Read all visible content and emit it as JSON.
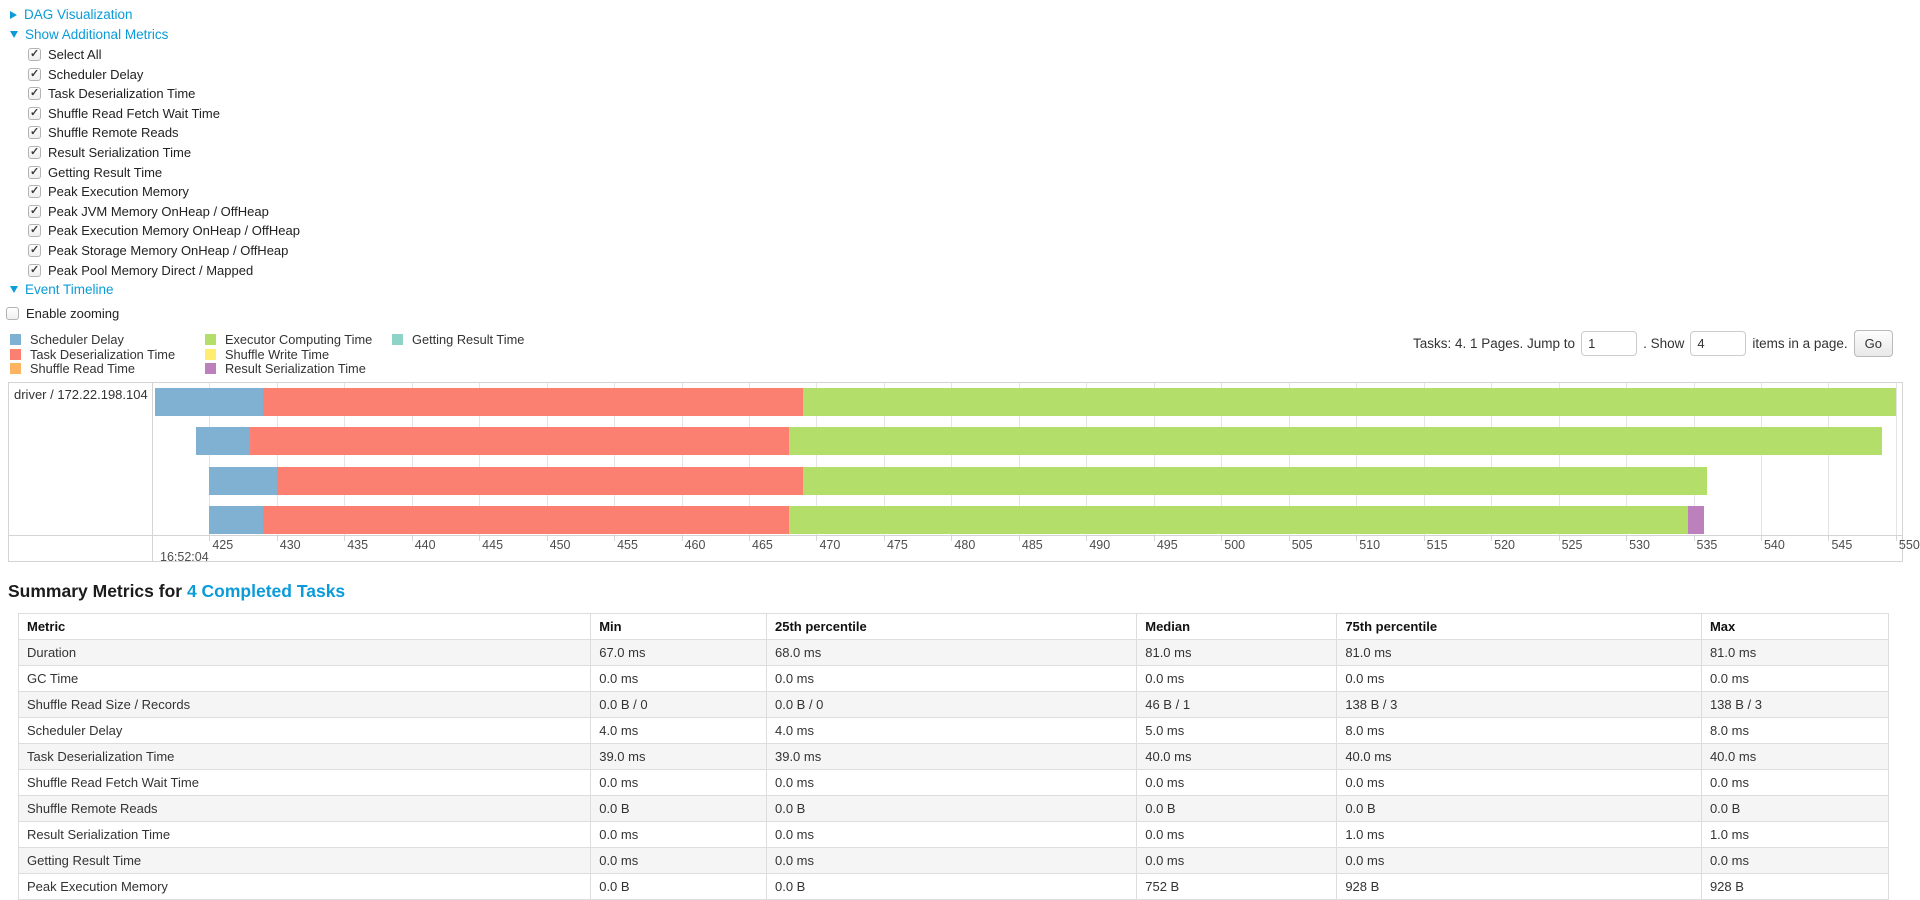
{
  "colors": {
    "link": "#0a9bd8",
    "scheduler_delay": "#80B1D3",
    "task_deserialization": "#FB8072",
    "shuffle_read": "#FDB462",
    "executor_computing": "#B3DE69",
    "shuffle_write": "#FFED6F",
    "result_serialization": "#BC80BD",
    "getting_result": "#8DD3C7"
  },
  "toggles": {
    "dag_label": "DAG Visualization",
    "metrics_label": "Show Additional Metrics",
    "timeline_label": "Event Timeline",
    "enable_zooming_label": "Enable zooming",
    "enable_zooming_checked": false
  },
  "metric_checkboxes": [
    {
      "label": "Select All",
      "checked": true
    },
    {
      "label": "Scheduler Delay",
      "checked": true
    },
    {
      "label": "Task Deserialization Time",
      "checked": true
    },
    {
      "label": "Shuffle Read Fetch Wait Time",
      "checked": true
    },
    {
      "label": "Shuffle Remote Reads",
      "checked": true
    },
    {
      "label": "Result Serialization Time",
      "checked": true
    },
    {
      "label": "Getting Result Time",
      "checked": true
    },
    {
      "label": "Peak Execution Memory",
      "checked": true
    },
    {
      "label": "Peak JVM Memory OnHeap / OffHeap",
      "checked": true
    },
    {
      "label": "Peak Execution Memory OnHeap / OffHeap",
      "checked": true
    },
    {
      "label": "Peak Storage Memory OnHeap / OffHeap",
      "checked": true
    },
    {
      "label": "Peak Pool Memory Direct / Mapped",
      "checked": true
    }
  ],
  "legend": {
    "columns": [
      [
        {
          "label": "Scheduler Delay",
          "color_key": "scheduler_delay"
        },
        {
          "label": "Task Deserialization Time",
          "color_key": "task_deserialization"
        },
        {
          "label": "Shuffle Read Time",
          "color_key": "shuffle_read"
        }
      ],
      [
        {
          "label": "Executor Computing Time",
          "color_key": "executor_computing"
        },
        {
          "label": "Shuffle Write Time",
          "color_key": "shuffle_write"
        },
        {
          "label": "Result Serialization Time",
          "color_key": "result_serialization"
        }
      ],
      [
        {
          "label": "Getting Result Time",
          "color_key": "getting_result"
        }
      ]
    ]
  },
  "pagination": {
    "tasks_text": "Tasks: 4. 1 Pages. Jump to",
    "jump_value": "1",
    "show_label": ". Show",
    "show_value": "4",
    "items_label": "items in a page.",
    "go_label": "Go"
  },
  "timeline": {
    "group_label": "driver / 172.22.198.104",
    "time_label": "16:52:04",
    "axis": {
      "min": 420.9,
      "max": 550.45,
      "tick_start": 425,
      "tick_end": 550,
      "tick_step": 5
    },
    "row_tops": [
      5,
      44,
      84,
      123
    ],
    "tasks": [
      {
        "start": 421,
        "segments": [
          {
            "key": "scheduler_delay",
            "duration": 8
          },
          {
            "key": "task_deserialization",
            "duration": 40
          },
          {
            "key": "executor_computing",
            "duration": 81
          }
        ]
      },
      {
        "start": 424,
        "segments": [
          {
            "key": "scheduler_delay",
            "duration": 4
          },
          {
            "key": "task_deserialization",
            "duration": 40
          },
          {
            "key": "executor_computing",
            "duration": 81
          }
        ]
      },
      {
        "start": 425,
        "segments": [
          {
            "key": "scheduler_delay",
            "duration": 5
          },
          {
            "key": "task_deserialization",
            "duration": 39
          },
          {
            "key": "executor_computing",
            "duration": 67
          }
        ]
      },
      {
        "start": 425,
        "segments": [
          {
            "key": "scheduler_delay",
            "duration": 4
          },
          {
            "key": "task_deserialization",
            "duration": 39
          },
          {
            "key": "executor_computing",
            "duration": 66.6
          },
          {
            "key": "result_serialization",
            "duration": 1.2
          }
        ]
      }
    ]
  },
  "summary": {
    "title_prefix": "Summary Metrics for ",
    "title_link": "4 Completed Tasks",
    "columns": [
      "Metric",
      "Min",
      "25th percentile",
      "Median",
      "75th percentile",
      "Max"
    ],
    "rows": [
      [
        "Duration",
        "67.0 ms",
        "68.0 ms",
        "81.0 ms",
        "81.0 ms",
        "81.0 ms"
      ],
      [
        "GC Time",
        "0.0 ms",
        "0.0 ms",
        "0.0 ms",
        "0.0 ms",
        "0.0 ms"
      ],
      [
        "Shuffle Read Size / Records",
        "0.0 B / 0",
        "0.0 B / 0",
        "46 B / 1",
        "138 B / 3",
        "138 B / 3"
      ],
      [
        "Scheduler Delay",
        "4.0 ms",
        "4.0 ms",
        "5.0 ms",
        "8.0 ms",
        "8.0 ms"
      ],
      [
        "Task Deserialization Time",
        "39.0 ms",
        "39.0 ms",
        "40.0 ms",
        "40.0 ms",
        "40.0 ms"
      ],
      [
        "Shuffle Read Fetch Wait Time",
        "0.0 ms",
        "0.0 ms",
        "0.0 ms",
        "0.0 ms",
        "0.0 ms"
      ],
      [
        "Shuffle Remote Reads",
        "0.0 B",
        "0.0 B",
        "0.0 B",
        "0.0 B",
        "0.0 B"
      ],
      [
        "Result Serialization Time",
        "0.0 ms",
        "0.0 ms",
        "0.0 ms",
        "1.0 ms",
        "1.0 ms"
      ],
      [
        "Getting Result Time",
        "0.0 ms",
        "0.0 ms",
        "0.0 ms",
        "0.0 ms",
        "0.0 ms"
      ],
      [
        "Peak Execution Memory",
        "0.0 B",
        "0.0 B",
        "752 B",
        "928 B",
        "928 B"
      ]
    ]
  }
}
